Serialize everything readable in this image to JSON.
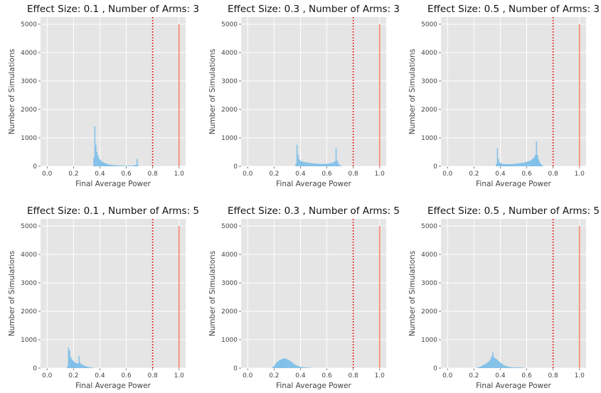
{
  "chart_data": [
    {
      "type": "histogram",
      "title": "Effect Size: 0.1 , Number of Arms: 3",
      "xlabel": "Final Average Power",
      "ylabel": "Number of Simulations",
      "xlim": [
        -0.05,
        1.05
      ],
      "ylim": [
        0,
        5250
      ],
      "xticks": [
        "0.0",
        "0.2",
        "0.4",
        "0.6",
        "0.8",
        "1.0"
      ],
      "yticks": [
        "0",
        "1000",
        "2000",
        "3000",
        "4000",
        "5000"
      ],
      "grid": true,
      "threshold_line": {
        "x": 0.8,
        "style": "dotted",
        "color": "#dd2222"
      },
      "power_line": {
        "x": 1.0,
        "y": 5000,
        "color": "#f7907a"
      },
      "bars": [
        {
          "x": 0.35,
          "y": 300
        },
        {
          "x": 0.358,
          "y": 1400
        },
        {
          "x": 0.366,
          "y": 750
        },
        {
          "x": 0.374,
          "y": 500
        },
        {
          "x": 0.382,
          "y": 380
        },
        {
          "x": 0.39,
          "y": 280
        },
        {
          "x": 0.398,
          "y": 230
        },
        {
          "x": 0.406,
          "y": 190
        },
        {
          "x": 0.414,
          "y": 160
        },
        {
          "x": 0.422,
          "y": 140
        },
        {
          "x": 0.43,
          "y": 120
        },
        {
          "x": 0.438,
          "y": 105
        },
        {
          "x": 0.446,
          "y": 90
        },
        {
          "x": 0.454,
          "y": 80
        },
        {
          "x": 0.462,
          "y": 70
        },
        {
          "x": 0.47,
          "y": 60
        },
        {
          "x": 0.478,
          "y": 55
        },
        {
          "x": 0.486,
          "y": 50
        },
        {
          "x": 0.494,
          "y": 45
        },
        {
          "x": 0.502,
          "y": 40
        },
        {
          "x": 0.51,
          "y": 36
        },
        {
          "x": 0.518,
          "y": 32
        },
        {
          "x": 0.526,
          "y": 30
        },
        {
          "x": 0.534,
          "y": 28
        },
        {
          "x": 0.542,
          "y": 26
        },
        {
          "x": 0.55,
          "y": 24
        },
        {
          "x": 0.558,
          "y": 22
        },
        {
          "x": 0.566,
          "y": 22
        },
        {
          "x": 0.574,
          "y": 20
        },
        {
          "x": 0.582,
          "y": 20
        },
        {
          "x": 0.59,
          "y": 18
        },
        {
          "x": 0.598,
          "y": 18
        },
        {
          "x": 0.606,
          "y": 18
        },
        {
          "x": 0.614,
          "y": 18
        },
        {
          "x": 0.622,
          "y": 20
        },
        {
          "x": 0.63,
          "y": 20
        },
        {
          "x": 0.638,
          "y": 22
        },
        {
          "x": 0.646,
          "y": 25
        },
        {
          "x": 0.654,
          "y": 30
        },
        {
          "x": 0.662,
          "y": 40
        },
        {
          "x": 0.67,
          "y": 60
        },
        {
          "x": 0.678,
          "y": 260
        },
        {
          "x": 0.686,
          "y": 30
        }
      ]
    },
    {
      "type": "histogram",
      "title": "Effect Size: 0.3 , Number of Arms: 3",
      "xlabel": "Final Average Power",
      "ylabel": "Number of Simulations",
      "xlim": [
        -0.05,
        1.05
      ],
      "ylim": [
        0,
        5250
      ],
      "xticks": [
        "0.0",
        "0.2",
        "0.4",
        "0.6",
        "0.8",
        "1.0"
      ],
      "yticks": [
        "0",
        "1000",
        "2000",
        "3000",
        "4000",
        "5000"
      ],
      "grid": true,
      "threshold_line": {
        "x": 0.8,
        "style": "dotted",
        "color": "#dd2222"
      },
      "power_line": {
        "x": 1.0,
        "y": 5000,
        "color": "#f7907a"
      },
      "bars": [
        {
          "x": 0.362,
          "y": 100
        },
        {
          "x": 0.37,
          "y": 760
        },
        {
          "x": 0.378,
          "y": 420
        },
        {
          "x": 0.386,
          "y": 250
        },
        {
          "x": 0.394,
          "y": 200
        },
        {
          "x": 0.402,
          "y": 180
        },
        {
          "x": 0.41,
          "y": 170
        },
        {
          "x": 0.418,
          "y": 160
        },
        {
          "x": 0.426,
          "y": 150
        },
        {
          "x": 0.434,
          "y": 140
        },
        {
          "x": 0.442,
          "y": 135
        },
        {
          "x": 0.45,
          "y": 130
        },
        {
          "x": 0.458,
          "y": 125
        },
        {
          "x": 0.466,
          "y": 120
        },
        {
          "x": 0.474,
          "y": 115
        },
        {
          "x": 0.482,
          "y": 110
        },
        {
          "x": 0.49,
          "y": 105
        },
        {
          "x": 0.498,
          "y": 100
        },
        {
          "x": 0.506,
          "y": 95
        },
        {
          "x": 0.514,
          "y": 92
        },
        {
          "x": 0.522,
          "y": 90
        },
        {
          "x": 0.53,
          "y": 88
        },
        {
          "x": 0.538,
          "y": 85
        },
        {
          "x": 0.546,
          "y": 85
        },
        {
          "x": 0.554,
          "y": 82
        },
        {
          "x": 0.562,
          "y": 80
        },
        {
          "x": 0.57,
          "y": 80
        },
        {
          "x": 0.578,
          "y": 82
        },
        {
          "x": 0.586,
          "y": 85
        },
        {
          "x": 0.594,
          "y": 88
        },
        {
          "x": 0.602,
          "y": 90
        },
        {
          "x": 0.61,
          "y": 95
        },
        {
          "x": 0.618,
          "y": 100
        },
        {
          "x": 0.626,
          "y": 110
        },
        {
          "x": 0.634,
          "y": 120
        },
        {
          "x": 0.642,
          "y": 135
        },
        {
          "x": 0.65,
          "y": 150
        },
        {
          "x": 0.658,
          "y": 180
        },
        {
          "x": 0.666,
          "y": 630
        },
        {
          "x": 0.674,
          "y": 200
        },
        {
          "x": 0.682,
          "y": 120
        },
        {
          "x": 0.69,
          "y": 60
        },
        {
          "x": 0.698,
          "y": 30
        },
        {
          "x": 0.706,
          "y": 15
        }
      ]
    },
    {
      "type": "histogram",
      "title": "Effect Size: 0.5 , Number of Arms: 3",
      "xlabel": "Final Average Power",
      "ylabel": "Number of Simulations",
      "xlim": [
        -0.05,
        1.05
      ],
      "ylim": [
        0,
        5250
      ],
      "xticks": [
        "0.0",
        "0.2",
        "0.4",
        "0.6",
        "0.8",
        "1.0"
      ],
      "yticks": [
        "0",
        "1000",
        "2000",
        "3000",
        "4000",
        "5000"
      ],
      "grid": true,
      "threshold_line": {
        "x": 0.8,
        "style": "dotted",
        "color": "#dd2222"
      },
      "power_line": {
        "x": 1.0,
        "y": 5000,
        "color": "#f7907a"
      },
      "bars": [
        {
          "x": 0.366,
          "y": 80
        },
        {
          "x": 0.374,
          "y": 640
        },
        {
          "x": 0.382,
          "y": 260
        },
        {
          "x": 0.39,
          "y": 150
        },
        {
          "x": 0.398,
          "y": 110
        },
        {
          "x": 0.406,
          "y": 95
        },
        {
          "x": 0.414,
          "y": 85
        },
        {
          "x": 0.422,
          "y": 80
        },
        {
          "x": 0.43,
          "y": 78
        },
        {
          "x": 0.438,
          "y": 75
        },
        {
          "x": 0.446,
          "y": 75
        },
        {
          "x": 0.454,
          "y": 75
        },
        {
          "x": 0.462,
          "y": 75
        },
        {
          "x": 0.47,
          "y": 78
        },
        {
          "x": 0.478,
          "y": 80
        },
        {
          "x": 0.486,
          "y": 82
        },
        {
          "x": 0.494,
          "y": 85
        },
        {
          "x": 0.502,
          "y": 88
        },
        {
          "x": 0.51,
          "y": 90
        },
        {
          "x": 0.518,
          "y": 95
        },
        {
          "x": 0.526,
          "y": 100
        },
        {
          "x": 0.534,
          "y": 105
        },
        {
          "x": 0.542,
          "y": 110
        },
        {
          "x": 0.55,
          "y": 115
        },
        {
          "x": 0.558,
          "y": 120
        },
        {
          "x": 0.566,
          "y": 125
        },
        {
          "x": 0.574,
          "y": 130
        },
        {
          "x": 0.582,
          "y": 140
        },
        {
          "x": 0.59,
          "y": 150
        },
        {
          "x": 0.598,
          "y": 160
        },
        {
          "x": 0.606,
          "y": 170
        },
        {
          "x": 0.614,
          "y": 180
        },
        {
          "x": 0.622,
          "y": 200
        },
        {
          "x": 0.63,
          "y": 220
        },
        {
          "x": 0.638,
          "y": 250
        },
        {
          "x": 0.646,
          "y": 280
        },
        {
          "x": 0.654,
          "y": 330
        },
        {
          "x": 0.662,
          "y": 400
        },
        {
          "x": 0.67,
          "y": 880
        },
        {
          "x": 0.678,
          "y": 400
        },
        {
          "x": 0.686,
          "y": 260
        },
        {
          "x": 0.694,
          "y": 160
        },
        {
          "x": 0.702,
          "y": 90
        },
        {
          "x": 0.71,
          "y": 45
        },
        {
          "x": 0.718,
          "y": 20
        }
      ]
    },
    {
      "type": "histogram",
      "title": "Effect Size: 0.1 , Number of Arms: 5",
      "xlabel": "Final Average Power",
      "ylabel": "Number of Simulations",
      "xlim": [
        -0.05,
        1.05
      ],
      "ylim": [
        0,
        5250
      ],
      "xticks": [
        "0.0",
        "0.2",
        "0.4",
        "0.6",
        "0.8",
        "1.0"
      ],
      "yticks": [
        "0",
        "1000",
        "2000",
        "3000",
        "4000",
        "5000"
      ],
      "grid": true,
      "threshold_line": {
        "x": 0.8,
        "style": "dotted",
        "color": "#dd2222"
      },
      "power_line": {
        "x": 1.0,
        "y": 5000,
        "color": "#f7907a"
      },
      "bars": [
        {
          "x": 0.15,
          "y": 60
        },
        {
          "x": 0.158,
          "y": 730
        },
        {
          "x": 0.166,
          "y": 620
        },
        {
          "x": 0.174,
          "y": 400
        },
        {
          "x": 0.182,
          "y": 330
        },
        {
          "x": 0.19,
          "y": 280
        },
        {
          "x": 0.198,
          "y": 240
        },
        {
          "x": 0.206,
          "y": 210
        },
        {
          "x": 0.214,
          "y": 180
        },
        {
          "x": 0.222,
          "y": 170
        },
        {
          "x": 0.23,
          "y": 160
        },
        {
          "x": 0.238,
          "y": 420
        },
        {
          "x": 0.246,
          "y": 200
        },
        {
          "x": 0.254,
          "y": 150
        },
        {
          "x": 0.262,
          "y": 130
        },
        {
          "x": 0.27,
          "y": 110
        },
        {
          "x": 0.278,
          "y": 90
        },
        {
          "x": 0.286,
          "y": 75
        },
        {
          "x": 0.294,
          "y": 60
        },
        {
          "x": 0.302,
          "y": 50
        },
        {
          "x": 0.31,
          "y": 40
        },
        {
          "x": 0.318,
          "y": 32
        },
        {
          "x": 0.326,
          "y": 25
        },
        {
          "x": 0.334,
          "y": 20
        },
        {
          "x": 0.342,
          "y": 15
        },
        {
          "x": 0.35,
          "y": 10
        }
      ]
    },
    {
      "type": "histogram",
      "title": "Effect Size: 0.3 , Number of Arms: 5",
      "xlabel": "Final Average Power",
      "ylabel": "Number of Simulations",
      "xlim": [
        -0.05,
        1.05
      ],
      "ylim": [
        0,
        5250
      ],
      "xticks": [
        "0.0",
        "0.2",
        "0.4",
        "0.6",
        "0.8",
        "1.0"
      ],
      "yticks": [
        "0",
        "1000",
        "2000",
        "3000",
        "4000",
        "5000"
      ],
      "grid": true,
      "threshold_line": {
        "x": 0.8,
        "style": "dotted",
        "color": "#dd2222"
      },
      "power_line": {
        "x": 1.0,
        "y": 5000,
        "color": "#f7907a"
      },
      "bars": [
        {
          "x": 0.18,
          "y": 15
        },
        {
          "x": 0.188,
          "y": 40
        },
        {
          "x": 0.196,
          "y": 80
        },
        {
          "x": 0.204,
          "y": 130
        },
        {
          "x": 0.212,
          "y": 180
        },
        {
          "x": 0.22,
          "y": 220
        },
        {
          "x": 0.228,
          "y": 250
        },
        {
          "x": 0.236,
          "y": 270
        },
        {
          "x": 0.244,
          "y": 300
        },
        {
          "x": 0.252,
          "y": 310
        },
        {
          "x": 0.26,
          "y": 330
        },
        {
          "x": 0.268,
          "y": 340
        },
        {
          "x": 0.276,
          "y": 350
        },
        {
          "x": 0.284,
          "y": 330
        },
        {
          "x": 0.292,
          "y": 320
        },
        {
          "x": 0.3,
          "y": 300
        },
        {
          "x": 0.308,
          "y": 280
        },
        {
          "x": 0.316,
          "y": 260
        },
        {
          "x": 0.324,
          "y": 240
        },
        {
          "x": 0.332,
          "y": 210
        },
        {
          "x": 0.34,
          "y": 180
        },
        {
          "x": 0.348,
          "y": 150
        },
        {
          "x": 0.356,
          "y": 120
        },
        {
          "x": 0.364,
          "y": 100
        },
        {
          "x": 0.372,
          "y": 85
        },
        {
          "x": 0.38,
          "y": 70
        },
        {
          "x": 0.388,
          "y": 58
        },
        {
          "x": 0.396,
          "y": 48
        },
        {
          "x": 0.404,
          "y": 40
        },
        {
          "x": 0.412,
          "y": 34
        },
        {
          "x": 0.42,
          "y": 28
        },
        {
          "x": 0.428,
          "y": 24
        },
        {
          "x": 0.436,
          "y": 20
        },
        {
          "x": 0.444,
          "y": 17
        },
        {
          "x": 0.452,
          "y": 14
        },
        {
          "x": 0.46,
          "y": 12
        },
        {
          "x": 0.468,
          "y": 10
        },
        {
          "x": 0.476,
          "y": 8
        },
        {
          "x": 0.484,
          "y": 6
        }
      ]
    },
    {
      "type": "histogram",
      "title": "Effect Size: 0.5 , Number of Arms: 5",
      "xlabel": "Final Average Power",
      "ylabel": "Number of Simulations",
      "xlim": [
        -0.05,
        1.05
      ],
      "ylim": [
        0,
        5250
      ],
      "xticks": [
        "0.0",
        "0.2",
        "0.4",
        "0.6",
        "0.8",
        "1.0"
      ],
      "yticks": [
        "0",
        "1000",
        "2000",
        "3000",
        "4000",
        "5000"
      ],
      "grid": true,
      "threshold_line": {
        "x": 0.8,
        "style": "dotted",
        "color": "#dd2222"
      },
      "power_line": {
        "x": 1.0,
        "y": 5000,
        "color": "#f7907a"
      },
      "bars": [
        {
          "x": 0.22,
          "y": 15
        },
        {
          "x": 0.228,
          "y": 25
        },
        {
          "x": 0.236,
          "y": 35
        },
        {
          "x": 0.244,
          "y": 50
        },
        {
          "x": 0.252,
          "y": 70
        },
        {
          "x": 0.26,
          "y": 90
        },
        {
          "x": 0.268,
          "y": 110
        },
        {
          "x": 0.276,
          "y": 130
        },
        {
          "x": 0.284,
          "y": 150
        },
        {
          "x": 0.292,
          "y": 170
        },
        {
          "x": 0.3,
          "y": 200
        },
        {
          "x": 0.308,
          "y": 230
        },
        {
          "x": 0.316,
          "y": 270
        },
        {
          "x": 0.324,
          "y": 340
        },
        {
          "x": 0.332,
          "y": 420
        },
        {
          "x": 0.34,
          "y": 550
        },
        {
          "x": 0.348,
          "y": 380
        },
        {
          "x": 0.356,
          "y": 360
        },
        {
          "x": 0.364,
          "y": 330
        },
        {
          "x": 0.372,
          "y": 300
        },
        {
          "x": 0.38,
          "y": 260
        },
        {
          "x": 0.388,
          "y": 230
        },
        {
          "x": 0.396,
          "y": 200
        },
        {
          "x": 0.404,
          "y": 170
        },
        {
          "x": 0.412,
          "y": 140
        },
        {
          "x": 0.42,
          "y": 115
        },
        {
          "x": 0.428,
          "y": 95
        },
        {
          "x": 0.436,
          "y": 80
        },
        {
          "x": 0.444,
          "y": 65
        },
        {
          "x": 0.452,
          "y": 55
        },
        {
          "x": 0.46,
          "y": 45
        },
        {
          "x": 0.468,
          "y": 38
        },
        {
          "x": 0.476,
          "y": 32
        },
        {
          "x": 0.484,
          "y": 28
        },
        {
          "x": 0.492,
          "y": 25
        },
        {
          "x": 0.5,
          "y": 22
        },
        {
          "x": 0.508,
          "y": 20
        },
        {
          "x": 0.516,
          "y": 20
        },
        {
          "x": 0.524,
          "y": 20
        },
        {
          "x": 0.532,
          "y": 22
        },
        {
          "x": 0.54,
          "y": 25
        },
        {
          "x": 0.548,
          "y": 22
        },
        {
          "x": 0.556,
          "y": 18
        },
        {
          "x": 0.564,
          "y": 14
        },
        {
          "x": 0.572,
          "y": 10
        }
      ]
    }
  ],
  "colors": {
    "plot_background": "#e5e5e5",
    "histogram": "#7fbfe9",
    "threshold_line": "#dd2222",
    "power_line": "#f7907a"
  }
}
